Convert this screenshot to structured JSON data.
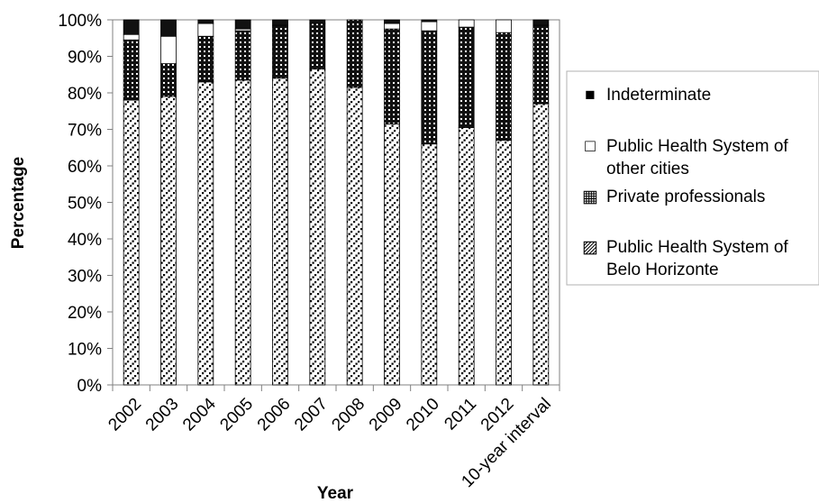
{
  "chart_data": {
    "type": "bar",
    "stacked": true,
    "title": "",
    "xlabel": "Year",
    "ylabel": "Percentage",
    "ylim": [
      0,
      100
    ],
    "yticks": [
      "0%",
      "10%",
      "20%",
      "30%",
      "40%",
      "50%",
      "60%",
      "70%",
      "80%",
      "90%",
      "100%"
    ],
    "categories": [
      "2002",
      "2003",
      "2004",
      "2005",
      "2006",
      "2007",
      "2008",
      "2009",
      "2010",
      "2011",
      "2012",
      "10-year interval"
    ],
    "series": [
      {
        "name": "Public Health System of Belo Horizonte",
        "pattern": "diagonal-dots",
        "values": [
          78,
          79,
          83,
          83.5,
          84,
          86.5,
          81.5,
          71.5,
          66,
          70.5,
          67,
          77
        ]
      },
      {
        "name": "Private professionals",
        "pattern": "checker-dark",
        "values": [
          16.5,
          9,
          12.5,
          13.5,
          14.5,
          12.5,
          18.5,
          26,
          31,
          27.5,
          29.5,
          21.5
        ]
      },
      {
        "name": "Public Health System of other cities",
        "pattern": "white",
        "values": [
          1.5,
          7.5,
          3.5,
          0.5,
          0,
          0,
          0,
          1.5,
          2.5,
          2,
          3.5,
          0
        ]
      },
      {
        "name": "Indeterminate",
        "pattern": "black",
        "values": [
          4,
          4.5,
          1,
          2.5,
          1.5,
          1,
          0,
          1,
          0.5,
          0,
          0,
          1.5
        ]
      }
    ],
    "legend": {
      "position": "right",
      "entries": [
        {
          "marker": "■",
          "lines": [
            "Indeterminate"
          ]
        },
        {
          "marker": "□",
          "lines": [
            "Public Health System of",
            "other cities"
          ]
        },
        {
          "marker": "▦",
          "lines": [
            "Private professionals"
          ]
        },
        {
          "marker": "▨",
          "lines": [
            "Public Health System of",
            "Belo Horizonte"
          ]
        }
      ]
    },
    "grid": false
  }
}
